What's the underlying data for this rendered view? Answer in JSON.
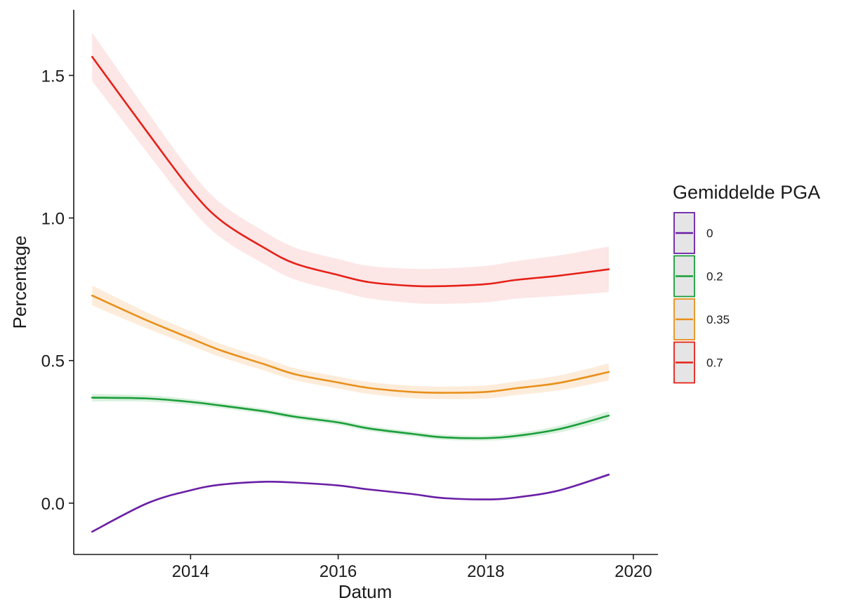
{
  "chart_data": {
    "type": "line",
    "title": "",
    "xlabel": "Datum",
    "ylabel": "Percentage",
    "x_ticks": [
      "2014",
      "2016",
      "2018",
      "2020"
    ],
    "y_ticks": [
      "0.0",
      "0.5",
      "1.0",
      "1.5"
    ],
    "xlim": [
      "2012-06-01",
      "2020-05-01"
    ],
    "ylim": [
      -0.18,
      1.73
    ],
    "grid": false,
    "legend": {
      "title": "Gemiddelde PGA",
      "position": "right"
    },
    "series": [
      {
        "name": "0",
        "color": "#6a1fa6",
        "band_color": "#c9b3e3",
        "x": [
          "2012-09-01",
          "2013-06-01",
          "2014-01-01",
          "2014-06-01",
          "2015-01-01",
          "2015-06-01",
          "2016-01-01",
          "2016-06-01",
          "2017-01-01",
          "2017-06-01",
          "2018-01-01",
          "2018-06-01",
          "2019-01-01",
          "2019-09-01"
        ],
        "y": [
          -0.1,
          0.0,
          0.045,
          0.065,
          0.075,
          0.072,
          0.062,
          0.048,
          0.032,
          0.018,
          0.013,
          0.02,
          0.045,
          0.1
        ],
        "band": [
          0.003,
          0.003,
          0.003,
          0.003,
          0.003,
          0.003,
          0.003,
          0.003,
          0.003,
          0.003,
          0.003,
          0.003,
          0.004,
          0.005
        ]
      },
      {
        "name": "0.2",
        "color": "#1a9e3a",
        "band_color": "#bfe6c6",
        "x": [
          "2012-09-01",
          "2013-06-01",
          "2014-01-01",
          "2014-06-01",
          "2015-01-01",
          "2015-06-01",
          "2016-01-01",
          "2016-06-01",
          "2017-01-01",
          "2017-06-01",
          "2018-01-01",
          "2018-06-01",
          "2019-01-01",
          "2019-09-01"
        ],
        "y": [
          0.37,
          0.367,
          0.355,
          0.342,
          0.322,
          0.303,
          0.283,
          0.262,
          0.243,
          0.231,
          0.228,
          0.236,
          0.26,
          0.307
        ],
        "band": [
          0.013,
          0.011,
          0.01,
          0.009,
          0.009,
          0.009,
          0.009,
          0.009,
          0.009,
          0.009,
          0.009,
          0.01,
          0.012,
          0.015
        ]
      },
      {
        "name": "0.35",
        "color": "#e8901a",
        "band_color": "#fbe0c2",
        "x": [
          "2012-09-01",
          "2013-06-01",
          "2014-01-01",
          "2014-06-01",
          "2015-01-01",
          "2015-06-01",
          "2016-01-01",
          "2016-06-01",
          "2017-01-01",
          "2017-06-01",
          "2018-01-01",
          "2018-06-01",
          "2019-01-01",
          "2019-09-01"
        ],
        "y": [
          0.728,
          0.64,
          0.578,
          0.535,
          0.487,
          0.452,
          0.423,
          0.404,
          0.39,
          0.387,
          0.39,
          0.403,
          0.422,
          0.46
        ],
        "band": [
          0.035,
          0.028,
          0.025,
          0.023,
          0.022,
          0.021,
          0.021,
          0.021,
          0.022,
          0.022,
          0.023,
          0.024,
          0.026,
          0.03
        ]
      },
      {
        "name": "0.7",
        "color": "#e52118",
        "band_color": "#fcd5d5",
        "x": [
          "2012-09-01",
          "2013-06-01",
          "2014-01-01",
          "2014-06-01",
          "2015-01-01",
          "2015-06-01",
          "2016-01-01",
          "2016-06-01",
          "2017-01-01",
          "2017-06-01",
          "2018-01-01",
          "2018-06-01",
          "2019-01-01",
          "2019-09-01"
        ],
        "y": [
          1.565,
          1.3,
          1.1,
          0.99,
          0.895,
          0.84,
          0.8,
          0.775,
          0.762,
          0.761,
          0.768,
          0.783,
          0.798,
          0.82
        ],
        "band": [
          0.085,
          0.072,
          0.065,
          0.06,
          0.057,
          0.056,
          0.056,
          0.057,
          0.06,
          0.062,
          0.064,
          0.066,
          0.071,
          0.08
        ]
      }
    ]
  }
}
